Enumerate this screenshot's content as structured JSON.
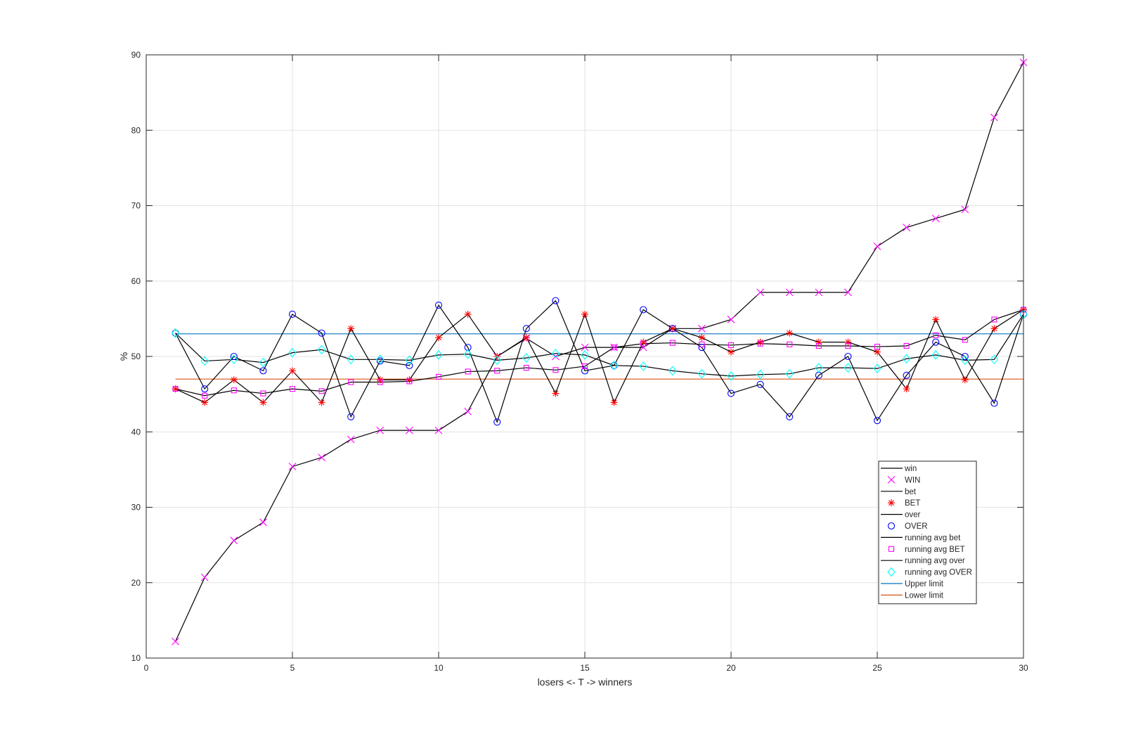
{
  "chart_data": {
    "type": "line",
    "title": "",
    "xlabel": "losers <- T -> winners",
    "ylabel": "%",
    "xlim": [
      0,
      30
    ],
    "ylim": [
      10,
      90
    ],
    "x_ticks": [
      0,
      5,
      10,
      15,
      20,
      25,
      30
    ],
    "y_ticks": [
      10,
      20,
      30,
      40,
      50,
      60,
      70,
      80,
      90
    ],
    "grid": true,
    "legend_position": "bottom-right",
    "x": [
      1,
      2,
      3,
      4,
      5,
      6,
      7,
      8,
      9,
      10,
      11,
      12,
      13,
      14,
      15,
      16,
      17,
      18,
      19,
      20,
      21,
      22,
      23,
      24,
      25,
      26,
      27,
      28,
      29,
      30
    ],
    "series": [
      {
        "name": "WIN",
        "line_label": "win",
        "marker": "x",
        "color": "#ff00ff",
        "values": [
          12.2,
          20.7,
          25.6,
          28.0,
          35.4,
          36.6,
          39.0,
          40.2,
          40.2,
          40.2,
          42.7,
          50.0,
          52.4,
          50.0,
          51.2,
          51.2,
          51.2,
          53.7,
          53.7,
          54.9,
          58.5,
          58.5,
          58.5,
          58.5,
          64.6,
          67.1,
          68.3,
          69.5,
          81.7,
          89.0
        ]
      },
      {
        "name": "BET",
        "line_label": "bet",
        "marker": "*",
        "color": "#ff0000",
        "values": [
          45.7,
          43.9,
          46.9,
          43.9,
          48.1,
          43.9,
          53.7,
          46.9,
          46.9,
          52.5,
          55.6,
          50.0,
          52.5,
          45.1,
          55.6,
          43.9,
          51.9,
          53.7,
          52.5,
          50.6,
          51.9,
          53.1,
          51.9,
          51.9,
          50.6,
          45.7,
          54.9,
          46.9,
          53.7,
          56.2
        ]
      },
      {
        "name": "OVER",
        "line_label": "over",
        "marker": "o",
        "color": "#0000ff",
        "values": [
          53.1,
          45.7,
          50.0,
          48.1,
          55.6,
          53.1,
          42.0,
          49.4,
          48.8,
          56.8,
          51.2,
          41.3,
          53.7,
          57.4,
          48.1,
          48.8,
          56.2,
          53.7,
          51.2,
          45.1,
          46.3,
          42.0,
          47.5,
          50.0,
          41.5,
          47.5,
          51.9,
          50.0,
          43.8,
          55.6
        ]
      },
      {
        "name": "running avg BET",
        "line_label": "running avg bet",
        "marker": "s",
        "color": "#ff00ff",
        "values": [
          45.7,
          44.8,
          45.5,
          45.1,
          45.7,
          45.4,
          46.6,
          46.6,
          46.7,
          47.3,
          48.0,
          48.1,
          48.5,
          48.2,
          48.7,
          51.2,
          51.7,
          51.8,
          51.6,
          51.5,
          51.7,
          51.6,
          51.4,
          51.4,
          51.3,
          51.4,
          52.8,
          52.2,
          54.9,
          56.2
        ]
      },
      {
        "name": "running avg OVER",
        "line_label": "running avg over",
        "marker": "d",
        "color": "#00ffff",
        "values": [
          53.1,
          49.4,
          49.6,
          49.2,
          50.5,
          50.9,
          49.6,
          49.6,
          49.5,
          50.2,
          50.3,
          49.5,
          49.8,
          50.4,
          50.2,
          48.8,
          48.7,
          48.1,
          47.7,
          47.4,
          47.6,
          47.7,
          48.5,
          48.5,
          48.4,
          49.7,
          50.2,
          49.5,
          49.6,
          55.6
        ]
      }
    ],
    "reference_lines": [
      {
        "name": "Upper limit",
        "y": 53.0,
        "x_range": [
          1,
          30
        ],
        "color": "#0072bd"
      },
      {
        "name": "Lower limit",
        "y": 47.0,
        "x_range": [
          1,
          30
        ],
        "color": "#d95319"
      }
    ],
    "legend": [
      {
        "label": "win",
        "kind": "line",
        "color": "#000000"
      },
      {
        "label": "WIN",
        "kind": "marker",
        "marker": "x",
        "color": "#ff00ff"
      },
      {
        "label": "bet",
        "kind": "line",
        "color": "#000000"
      },
      {
        "label": "BET",
        "kind": "marker",
        "marker": "*",
        "color": "#ff0000"
      },
      {
        "label": "over",
        "kind": "line",
        "color": "#000000"
      },
      {
        "label": "OVER",
        "kind": "marker",
        "marker": "o",
        "color": "#0000ff"
      },
      {
        "label": "running avg bet",
        "kind": "line",
        "color": "#000000"
      },
      {
        "label": "running avg BET",
        "kind": "marker",
        "marker": "s",
        "color": "#ff00ff"
      },
      {
        "label": "running avg over",
        "kind": "line",
        "color": "#000000"
      },
      {
        "label": "running avg OVER",
        "kind": "marker",
        "marker": "d",
        "color": "#00ffff"
      },
      {
        "label": "Upper limit",
        "kind": "line",
        "color": "#0072bd"
      },
      {
        "label": "Lower limit",
        "kind": "line",
        "color": "#d95319"
      }
    ]
  }
}
